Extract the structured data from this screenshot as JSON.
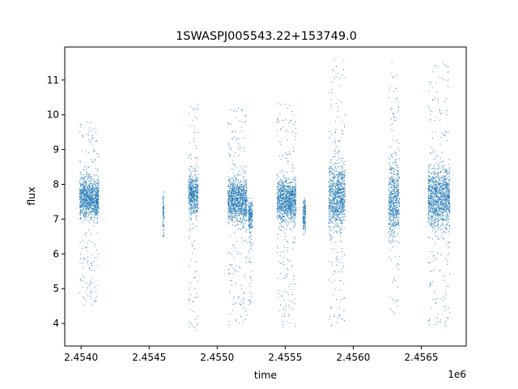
{
  "chart_data": {
    "type": "scatter",
    "title": "1SWASPJ005543.22+153749.0",
    "xlabel": "time",
    "ylabel": "flux",
    "x_offset_label": "1e6",
    "xlim": [
      2453830,
      2456780
    ],
    "ylim": [
      3.35,
      11.95
    ],
    "x_ticks": [
      2453950,
      2454450,
      2454950,
      2455450,
      2455950,
      2456450
    ],
    "x_tick_labels": [
      "2.4540",
      "2.4545",
      "2.4550",
      "2.4555",
      "2.4560",
      "2.4565"
    ],
    "y_ticks": [
      4,
      5,
      6,
      7,
      8,
      9,
      10,
      11
    ],
    "y_tick_labels": [
      "4",
      "5",
      "6",
      "7",
      "8",
      "9",
      "10",
      "11"
    ],
    "grid": false,
    "marker_color": "#1f77b4",
    "series": [
      {
        "clusters": [
          {
            "x_range": [
              2453940,
              2454080
            ],
            "core_y": [
              7.1,
              8.1
            ],
            "y_range": [
              4.5,
              9.8
            ]
          },
          {
            "x_range": [
              2454550,
              2454560
            ],
            "core_y": [
              6.6,
              7.8
            ],
            "y_range": [
              6.5,
              7.8
            ]
          },
          {
            "x_range": [
              2454740,
              2454810
            ],
            "core_y": [
              7.2,
              8.2
            ],
            "y_range": [
              3.8,
              10.3
            ]
          },
          {
            "x_range": [
              2455030,
              2455170
            ],
            "core_y": [
              7.0,
              8.1
            ],
            "y_range": [
              3.9,
              10.2
            ]
          },
          {
            "x_range": [
              2455180,
              2455210
            ],
            "core_y": [
              6.7,
              7.5
            ],
            "y_range": [
              4.5,
              7.6
            ]
          },
          {
            "x_range": [
              2455390,
              2455530
            ],
            "core_y": [
              7.0,
              8.1
            ],
            "y_range": [
              3.9,
              10.4
            ]
          },
          {
            "x_range": [
              2455580,
              2455600
            ],
            "core_y": [
              6.7,
              7.6
            ],
            "y_range": [
              6.5,
              7.6
            ]
          },
          {
            "x_range": [
              2455770,
              2455890
            ],
            "core_y": [
              6.8,
              8.5
            ],
            "y_range": [
              3.8,
              11.6
            ]
          },
          {
            "x_range": [
              2456210,
              2456290
            ],
            "core_y": [
              6.6,
              8.5
            ],
            "y_range": [
              4.2,
              11.5
            ]
          },
          {
            "x_range": [
              2456500,
              2456660
            ],
            "core_y": [
              6.8,
              8.4
            ],
            "y_range": [
              3.9,
              11.5
            ]
          }
        ]
      }
    ]
  }
}
